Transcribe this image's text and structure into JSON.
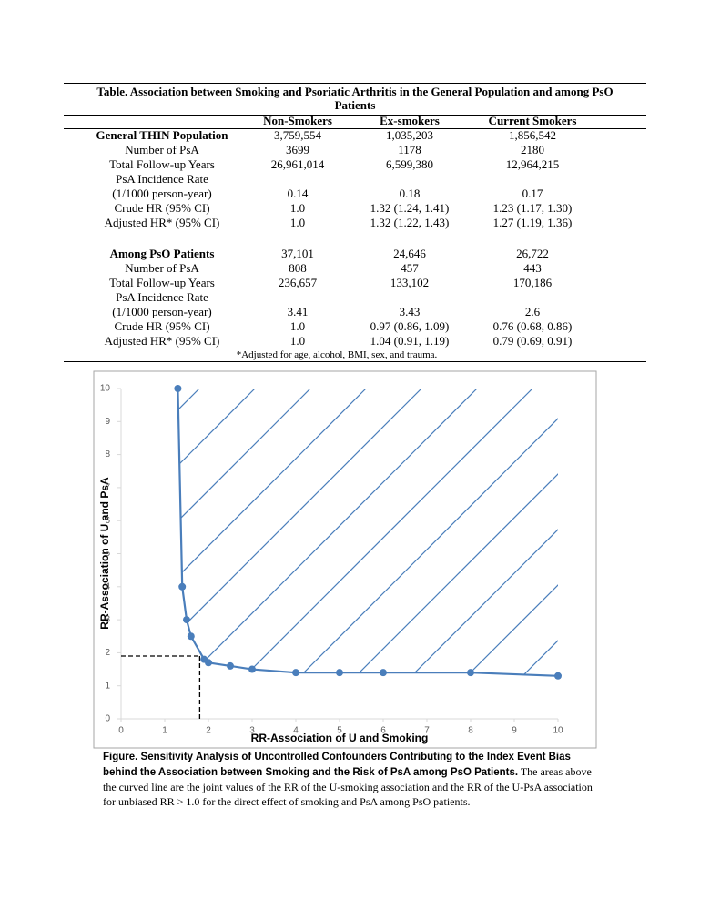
{
  "table": {
    "title": "Table. Association between Smoking and Psoriatic Arthritis in the General Population and among PsO Patients",
    "columns": [
      "Non-Smokers",
      "Ex-smokers",
      "Current Smokers"
    ],
    "sections": [
      {
        "heading": "General THIN Population",
        "heading_cells": [
          "3,759,554",
          "1,035,203",
          "1,856,542"
        ],
        "rows": [
          {
            "label": [
              "Number of PsA"
            ],
            "cells": [
              "3699",
              "1178",
              "2180"
            ]
          },
          {
            "label": [
              "Total Follow-up Years"
            ],
            "cells": [
              "26,961,014",
              "6,599,380",
              "12,964,215"
            ]
          },
          {
            "label": [
              "PsA Incidence Rate",
              "(1/1000 person-year)"
            ],
            "cells": [
              "0.14",
              "0.18",
              "0.17"
            ]
          },
          {
            "label": [
              "Crude HR (95% CI)"
            ],
            "cells": [
              "1.0",
              "1.32 (1.24, 1.41)",
              "1.23 (1.17, 1.30)"
            ]
          },
          {
            "label": [
              "Adjusted HR* (95% CI)"
            ],
            "cells": [
              "1.0",
              "1.32 (1.22, 1.43)",
              "1.27 (1.19, 1.36)"
            ]
          }
        ]
      },
      {
        "heading": "Among PsO Patients",
        "heading_cells": [
          "37,101",
          "24,646",
          "26,722"
        ],
        "rows": [
          {
            "label": [
              "Number of PsA"
            ],
            "cells": [
              "808",
              "457",
              "443"
            ]
          },
          {
            "label": [
              "Total Follow-up Years"
            ],
            "cells": [
              "236,657",
              "133,102",
              "170,186"
            ]
          },
          {
            "label": [
              "PsA Incidence Rate",
              "(1/1000 person-year)"
            ],
            "cells": [
              "3.41",
              "3.43",
              "2.6"
            ]
          },
          {
            "label": [
              "Crude HR (95% CI)"
            ],
            "cells": [
              "1.0",
              "0.97 (0.86, 1.09)",
              "0.76 (0.68, 0.86)"
            ]
          },
          {
            "label": [
              "Adjusted HR* (95% CI)"
            ],
            "cells": [
              "1.0",
              "1.04 (0.91, 1.19)",
              "0.79 (0.69, 0.91)"
            ]
          }
        ]
      }
    ],
    "footnote": "*Adjusted for age, alcohol, BMI, sex, and trauma."
  },
  "chart_data": {
    "type": "line",
    "x_label": "RR-Association of U and Smoking",
    "y_label": "RR-Association of U and PsA",
    "x": [
      1.3,
      1.4,
      1.5,
      1.6,
      1.9,
      2,
      2.5,
      3,
      4,
      5,
      6,
      8,
      10
    ],
    "values": [
      10,
      4,
      3,
      2.5,
      1.8,
      1.7,
      1.6,
      1.5,
      1.4,
      1.4,
      1.4,
      1.4,
      1.3
    ],
    "color": "#4a7ebb",
    "reference_point": {
      "x": 1.8,
      "y": 1.9
    },
    "xlim": [
      0,
      10
    ],
    "ylim": [
      0,
      10
    ],
    "xticks": [
      0,
      1,
      2,
      3,
      4,
      5,
      6,
      7,
      8,
      9,
      10
    ],
    "yticks": [
      0,
      1,
      2,
      3,
      4,
      5,
      6,
      7,
      8,
      9,
      10
    ]
  },
  "caption": {
    "bold": "Figure. Sensitivity Analysis of Uncontrolled Confounders Contributing to the Index Event Bias behind the Association between Smoking and the Risk of PsA among PsO Patients.",
    "text": " The areas above the curved line are the joint values of the RR of the U-smoking association and the RR of the U-PsA association for unbiased RR > 1.0 for the direct effect of smoking and PsA among PsO patients."
  }
}
